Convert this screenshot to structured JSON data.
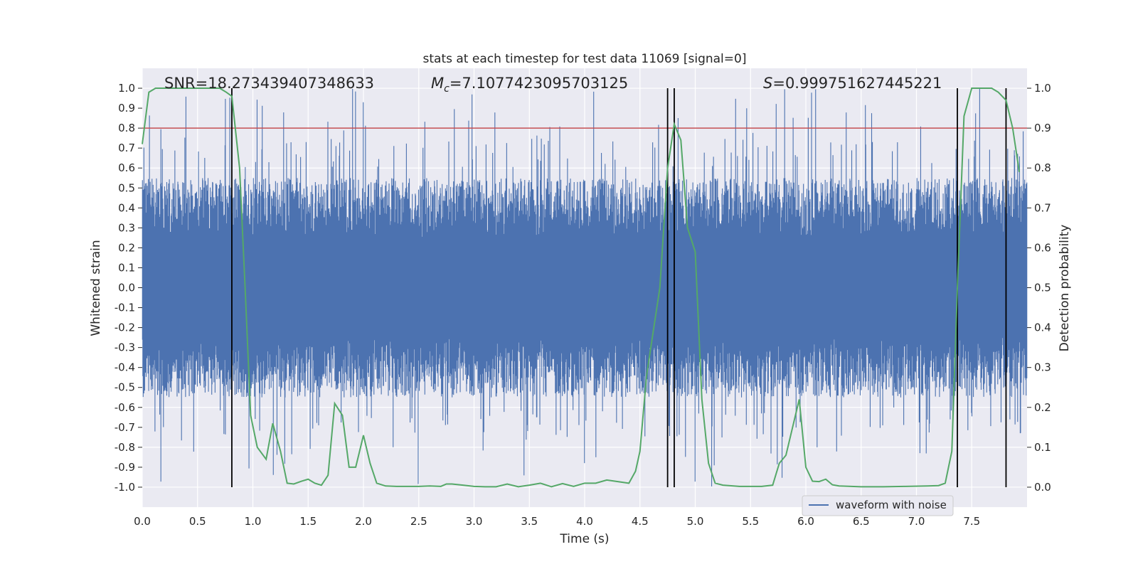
{
  "chart_data": {
    "type": "line",
    "title": "stats at each timestep for test data 11069 [signal=0]",
    "xlabel": "Time (s)",
    "ylabel": "Whitened strain",
    "y2label": "Detection probability",
    "xlim": [
      0.0,
      8.0
    ],
    "ylim": [
      -1.1,
      1.1
    ],
    "y2lim": [
      -0.05,
      1.05
    ],
    "x_ticks": [
      0.0,
      0.5,
      1.0,
      1.5,
      2.0,
      2.5,
      3.0,
      3.5,
      4.0,
      4.5,
      5.0,
      5.5,
      6.0,
      6.5,
      7.0,
      7.5
    ],
    "y_ticks": [
      -1.0,
      -0.9,
      -0.8,
      -0.7,
      -0.6,
      -0.5,
      -0.4,
      -0.3,
      -0.2,
      -0.1,
      0.0,
      0.1,
      0.2,
      0.3,
      0.4,
      0.5,
      0.6,
      0.7,
      0.8,
      0.9,
      1.0
    ],
    "y2_ticks": [
      0.0,
      0.1,
      0.2,
      0.3,
      0.4,
      0.5,
      0.6,
      0.7,
      0.8,
      0.9,
      1.0
    ],
    "grid": true,
    "legend": {
      "position": "lower-right",
      "entries": [
        "waveform with noise"
      ]
    },
    "annotations": {
      "snr": "SNR=18.273439407348633",
      "mc_symbol": "M",
      "mc_sub": "c",
      "mc_value": "=7.1077423095703125",
      "s_symbol": "S",
      "s_value": "=0.999751627445221"
    },
    "threshold": {
      "value": 0.9,
      "axis": "y2",
      "color": "#c44e52"
    },
    "vertical_lines": [
      0.81,
      4.75,
      4.81,
      7.37,
      7.81
    ],
    "series": [
      {
        "name": "waveform with noise",
        "axis": "y",
        "color": "#4c72b0",
        "description": "dense whitened strain noise, approx uniform within ±0.5 with spikes up to 1.0 / -1.0"
      },
      {
        "axis": "y2",
        "color": "#55a868",
        "x": [
          0.0,
          0.06,
          0.12,
          0.2,
          0.3,
          0.4,
          0.5,
          0.6,
          0.7,
          0.76,
          0.81,
          0.88,
          0.93,
          0.98,
          1.04,
          1.12,
          1.18,
          1.25,
          1.31,
          1.37,
          1.44,
          1.5,
          1.56,
          1.62,
          1.68,
          1.74,
          1.81,
          1.87,
          1.93,
          2.0,
          2.06,
          2.12,
          2.2,
          2.3,
          2.4,
          2.5,
          2.6,
          2.7,
          2.75,
          2.8,
          2.9,
          3.0,
          3.1,
          3.2,
          3.3,
          3.4,
          3.5,
          3.6,
          3.7,
          3.8,
          3.9,
          4.0,
          4.1,
          4.2,
          4.3,
          4.4,
          4.46,
          4.5,
          4.56,
          4.62,
          4.68,
          4.75,
          4.81,
          4.87,
          4.93,
          5.0,
          5.06,
          5.12,
          5.18,
          5.25,
          5.4,
          5.6,
          5.7,
          5.76,
          5.82,
          5.88,
          5.94,
          6.0,
          6.06,
          6.12,
          6.18,
          6.24,
          6.3,
          6.5,
          6.7,
          6.9,
          7.1,
          7.2,
          7.26,
          7.32,
          7.37,
          7.43,
          7.5,
          7.56,
          7.62,
          7.68,
          7.74,
          7.81,
          7.87,
          7.93
        ],
        "values": [
          0.86,
          0.99,
          1.0,
          1.0,
          1.0,
          1.0,
          1.0,
          1.0,
          1.0,
          0.99,
          0.98,
          0.8,
          0.5,
          0.18,
          0.1,
          0.07,
          0.16,
          0.09,
          0.01,
          0.008,
          0.015,
          0.02,
          0.01,
          0.005,
          0.03,
          0.21,
          0.18,
          0.05,
          0.05,
          0.13,
          0.06,
          0.01,
          0.003,
          0.002,
          0.002,
          0.002,
          0.003,
          0.002,
          0.008,
          0.008,
          0.005,
          0.002,
          0.001,
          0.001,
          0.008,
          0.001,
          0.005,
          0.01,
          0.001,
          0.009,
          0.002,
          0.01,
          0.01,
          0.018,
          0.014,
          0.01,
          0.04,
          0.09,
          0.28,
          0.39,
          0.5,
          0.8,
          0.91,
          0.87,
          0.65,
          0.59,
          0.22,
          0.06,
          0.01,
          0.005,
          0.002,
          0.002,
          0.005,
          0.06,
          0.08,
          0.15,
          0.22,
          0.05,
          0.015,
          0.014,
          0.02,
          0.006,
          0.003,
          0.001,
          0.001,
          0.002,
          0.003,
          0.004,
          0.01,
          0.09,
          0.5,
          0.93,
          1.0,
          1.0,
          1.0,
          1.0,
          0.99,
          0.97,
          0.9,
          0.79
        ]
      }
    ]
  }
}
